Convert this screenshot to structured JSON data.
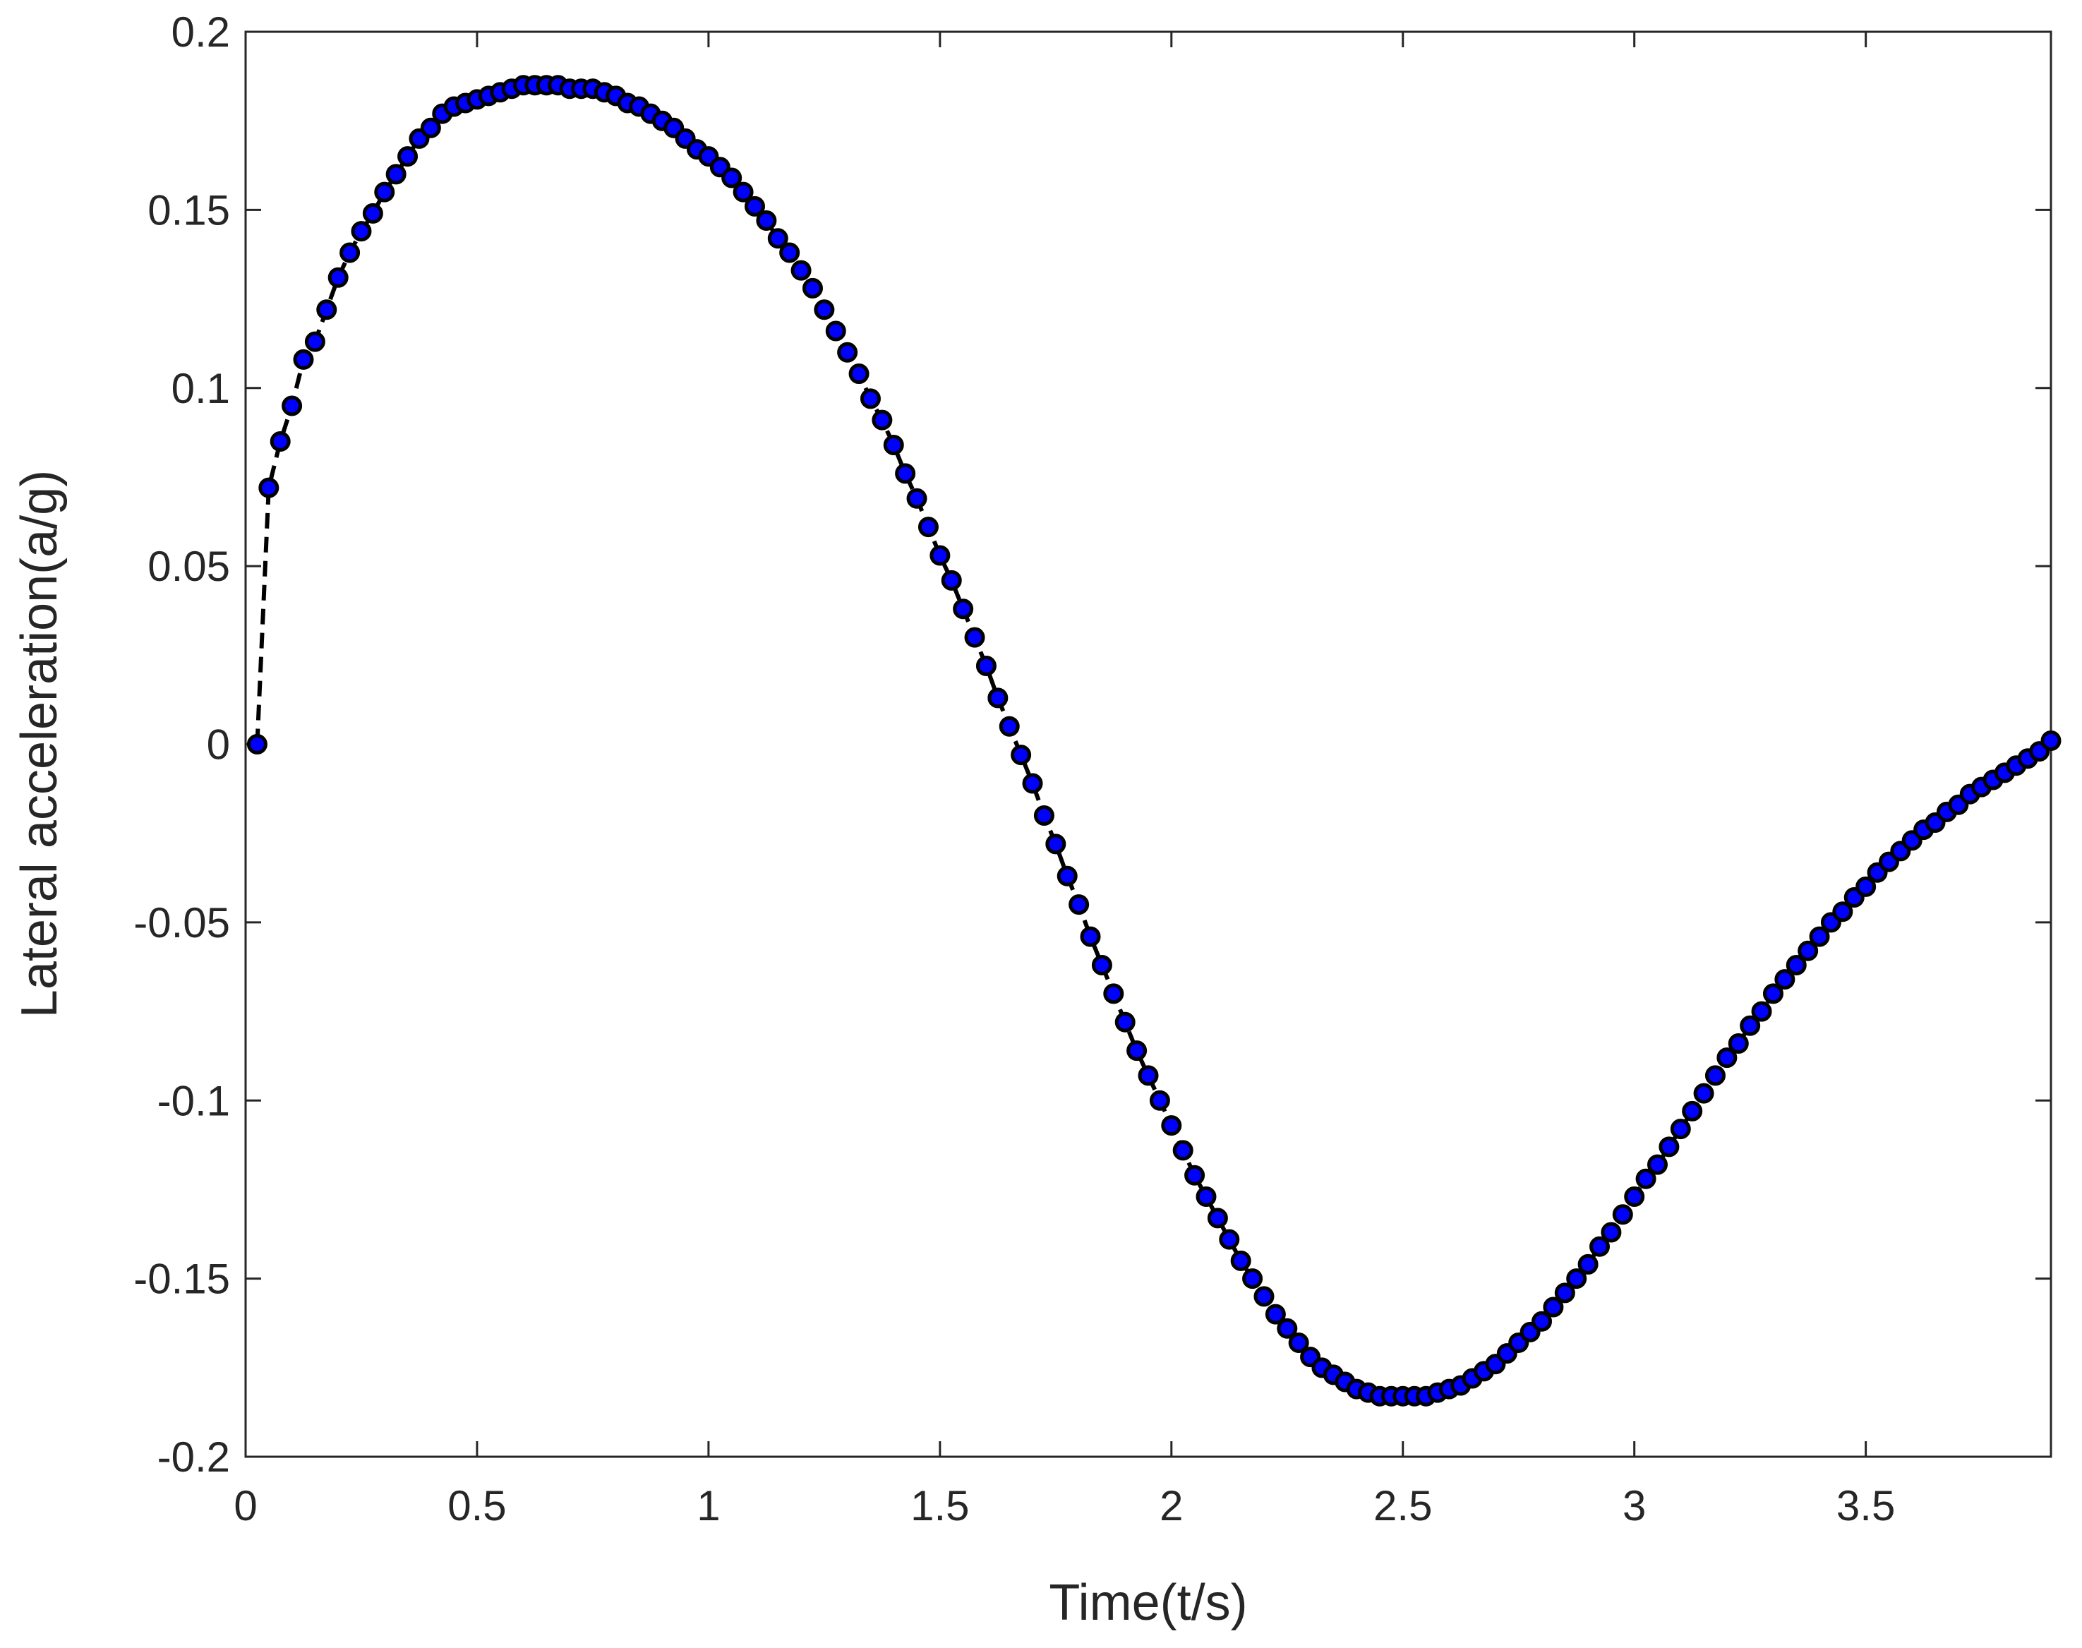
{
  "chart_data": {
    "type": "line",
    "xlabel": "Time(t/s)",
    "ylabel": "Lateral acceleration(a/g)",
    "x": [
      0.025,
      0.05,
      0.075,
      0.1,
      0.125,
      0.15,
      0.175,
      0.2,
      0.225,
      0.25,
      0.275,
      0.3,
      0.325,
      0.35,
      0.375,
      0.4,
      0.425,
      0.45,
      0.475,
      0.5,
      0.525,
      0.55,
      0.575,
      0.6,
      0.625,
      0.65,
      0.675,
      0.7,
      0.725,
      0.75,
      0.775,
      0.8,
      0.825,
      0.85,
      0.875,
      0.9,
      0.925,
      0.95,
      0.975,
      1.0,
      1.025,
      1.05,
      1.075,
      1.1,
      1.125,
      1.15,
      1.175,
      1.2,
      1.225,
      1.25,
      1.275,
      1.3,
      1.325,
      1.35,
      1.375,
      1.4,
      1.425,
      1.45,
      1.475,
      1.5,
      1.525,
      1.55,
      1.575,
      1.6,
      1.625,
      1.65,
      1.675,
      1.7,
      1.725,
      1.75,
      1.775,
      1.8,
      1.825,
      1.85,
      1.875,
      1.9,
      1.925,
      1.95,
      1.975,
      2.0,
      2.025,
      2.05,
      2.075,
      2.1,
      2.125,
      2.15,
      2.175,
      2.2,
      2.225,
      2.25,
      2.275,
      2.3,
      2.325,
      2.35,
      2.375,
      2.4,
      2.425,
      2.45,
      2.475,
      2.5,
      2.525,
      2.55,
      2.575,
      2.6,
      2.625,
      2.65,
      2.675,
      2.7,
      2.725,
      2.75,
      2.775,
      2.8,
      2.825,
      2.85,
      2.875,
      2.9,
      2.925,
      2.95,
      2.975,
      3.0,
      3.025,
      3.05,
      3.075,
      3.1,
      3.125,
      3.15,
      3.175,
      3.2,
      3.225,
      3.25,
      3.275,
      3.3,
      3.325,
      3.35,
      3.375,
      3.4,
      3.425,
      3.45,
      3.475,
      3.5,
      3.525,
      3.55,
      3.575,
      3.6,
      3.625,
      3.65,
      3.675,
      3.7,
      3.725,
      3.75,
      3.775,
      3.8,
      3.825,
      3.85,
      3.875,
      3.9
    ],
    "series": [
      {
        "color": "#000000",
        "marker_color": "#0000ff",
        "values": [
          0,
          0.072,
          0.085,
          0.095,
          0.108,
          0.113,
          0.122,
          0.131,
          0.138,
          0.144,
          0.149,
          0.155,
          0.16,
          0.165,
          0.17,
          0.173,
          0.177,
          0.179,
          0.18,
          0.181,
          0.182,
          0.183,
          0.184,
          0.185,
          0.185,
          0.185,
          0.185,
          0.184,
          0.184,
          0.184,
          0.183,
          0.182,
          0.18,
          0.179,
          0.177,
          0.175,
          0.173,
          0.17,
          0.167,
          0.165,
          0.162,
          0.159,
          0.155,
          0.151,
          0.147,
          0.142,
          0.138,
          0.133,
          0.128,
          0.122,
          0.116,
          0.11,
          0.104,
          0.097,
          0.091,
          0.084,
          0.076,
          0.069,
          0.061,
          0.053,
          0.046,
          0.038,
          0.03,
          0.022,
          0.013,
          0.005,
          -0.003,
          -0.011,
          -0.02,
          -0.028,
          -0.037,
          -0.045,
          -0.054,
          -0.062,
          -0.07,
          -0.078,
          -0.086,
          -0.093,
          -0.1,
          -0.107,
          -0.114,
          -0.121,
          -0.127,
          -0.133,
          -0.139,
          -0.145,
          -0.15,
          -0.155,
          -0.16,
          -0.164,
          -0.168,
          -0.172,
          -0.175,
          -0.177,
          -0.179,
          -0.181,
          -0.182,
          -0.183,
          -0.183,
          -0.183,
          -0.183,
          -0.183,
          -0.182,
          -0.181,
          -0.18,
          -0.178,
          -0.176,
          -0.174,
          -0.171,
          -0.168,
          -0.165,
          -0.162,
          -0.158,
          -0.154,
          -0.15,
          -0.146,
          -0.141,
          -0.137,
          -0.132,
          -0.127,
          -0.122,
          -0.118,
          -0.113,
          -0.108,
          -0.103,
          -0.098,
          -0.093,
          -0.088,
          -0.084,
          -0.079,
          -0.075,
          -0.07,
          -0.066,
          -0.062,
          -0.058,
          -0.054,
          -0.05,
          -0.047,
          -0.043,
          -0.04,
          -0.036,
          -0.033,
          -0.03,
          -0.027,
          -0.024,
          -0.022,
          -0.019,
          -0.017,
          -0.014,
          -0.012,
          -0.01,
          -0.008,
          -0.006,
          -0.004,
          -0.002,
          0.001
        ]
      }
    ],
    "xlim": [
      0,
      3.9
    ],
    "xticks": [
      0,
      0.5,
      1,
      1.5,
      2,
      2.5,
      3,
      3.5
    ],
    "ylim": [
      -0.2,
      0.2
    ],
    "yticks": [
      -0.2,
      -0.15,
      -0.1,
      -0.05,
      0,
      0.05,
      0.1,
      0.15,
      0.2
    ],
    "grid": false
  }
}
